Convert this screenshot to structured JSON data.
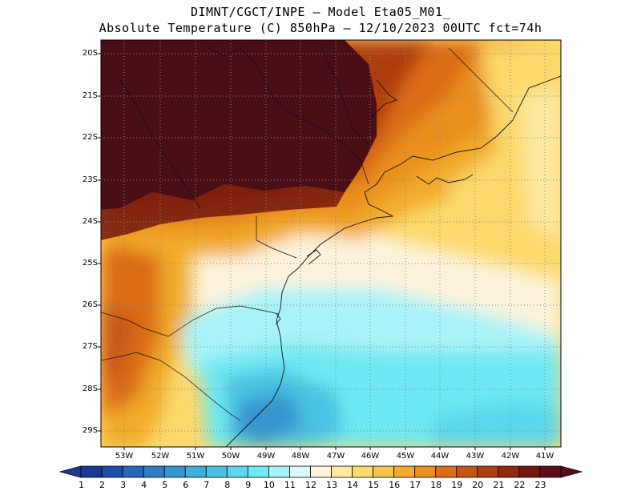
{
  "title": {
    "line1": "DIMNT/CGCT/INPE –  Model Eta05_M01_",
    "line2": "Absolute Temperature (C) 850hPa –  12/10/2023 00UTC fct=74h"
  },
  "map": {
    "lat_labels": [
      "20S",
      "21S",
      "22S",
      "23S",
      "24S",
      "25S",
      "26S",
      "27S",
      "28S",
      "29S"
    ],
    "lon_labels": [
      "53W",
      "52W",
      "51W",
      "50W",
      "49W",
      "48W",
      "47W",
      "46W",
      "45W",
      "44W",
      "43W",
      "42W",
      "41W"
    ],
    "lat_range": [
      -29.4,
      -19.8
    ],
    "lon_range": [
      -53.6,
      -40.9
    ],
    "grid": true,
    "hot_region": "northwest interior (> 23 C)",
    "cold_region": "southeast ocean off Santa Catarina (7–10 C)"
  },
  "colorbar": {
    "labels": [
      "1",
      "2",
      "3",
      "4",
      "5",
      "6",
      "7",
      "8",
      "9",
      "10",
      "11",
      "12",
      "13",
      "14",
      "15",
      "16",
      "17",
      "18",
      "19",
      "20",
      "21",
      "22",
      "23"
    ],
    "colors": [
      "#1a3a93",
      "#1d4fa6",
      "#2866b6",
      "#2f7dc3",
      "#3595cf",
      "#3dadd9",
      "#49c3e2",
      "#5ad7ea",
      "#6ee8f2",
      "#a7f3f7",
      "#daf7f9",
      "#fdf3dc",
      "#fde8a0",
      "#fbd96c",
      "#f7c44a",
      "#f2ab2a",
      "#ea8f1c",
      "#dc6d16",
      "#c75412",
      "#ad3e10",
      "#8f2a10",
      "#73170f",
      "#5c0d18"
    ]
  }
}
